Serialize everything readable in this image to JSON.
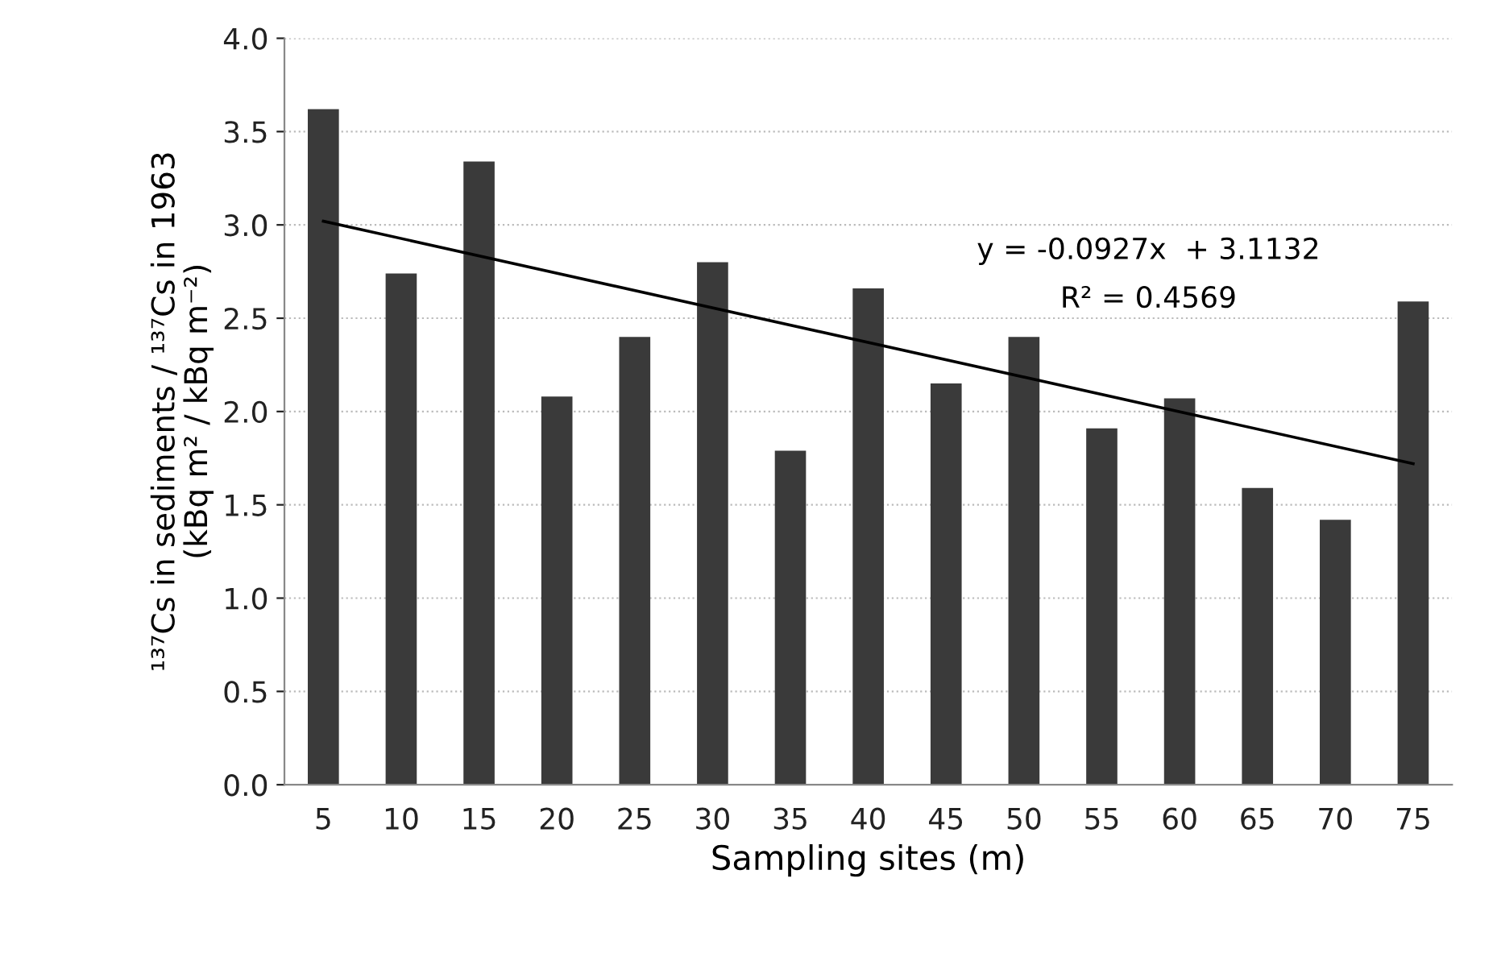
{
  "chart_data": {
    "type": "bar",
    "xlabel": "Sampling sites (m)",
    "ylabel": "¹³⁷Cs in sediments / ¹³⁷Cs in 1963\n(kBq m² / kBq m⁻²)",
    "x": [
      5,
      10,
      15,
      20,
      25,
      30,
      35,
      40,
      45,
      50,
      55,
      60,
      65,
      70,
      75
    ],
    "xlim": [
      2.5,
      77.5
    ],
    "xticks": [
      5,
      10,
      15,
      20,
      25,
      30,
      35,
      40,
      45,
      50,
      55,
      60,
      65,
      70,
      75
    ],
    "ylim": [
      0,
      4.0
    ],
    "yticks": [
      {
        "value": 0,
        "label": "0.0"
      },
      {
        "value": 0.5,
        "label": "0.5"
      },
      {
        "value": 1.0,
        "label": "1.0"
      },
      {
        "value": 1.5,
        "label": "1.5"
      },
      {
        "value": 2.0,
        "label": "2.0"
      },
      {
        "value": 2.5,
        "label": "2.5"
      },
      {
        "value": 3.0,
        "label": "3.0"
      },
      {
        "value": 3.5,
        "label": "3.5"
      },
      {
        "value": 4.0,
        "label": "4.0"
      }
    ],
    "grid": "y",
    "series": [
      {
        "color": "#3a3a3a",
        "values": [
          3.62,
          2.74,
          3.34,
          2.08,
          2.4,
          2.8,
          1.79,
          2.66,
          2.15,
          2.4,
          1.91,
          2.07,
          1.59,
          1.42,
          2.59
        ]
      },
      {
        "type": "line",
        "color": "#000000",
        "x": [
          5,
          75
        ],
        "values": [
          3.02,
          1.72
        ]
      }
    ],
    "annotations": [
      "y = -0.0927x  + 3.1132",
      "R² = 0.4569"
    ]
  }
}
